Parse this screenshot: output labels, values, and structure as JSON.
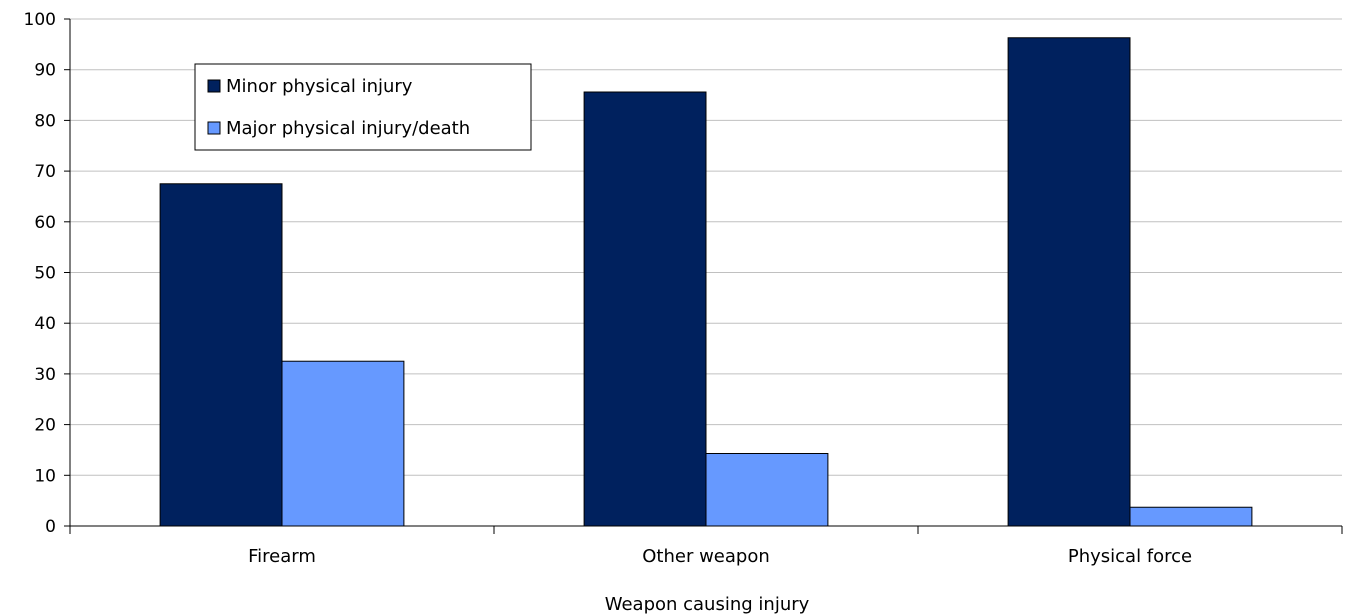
{
  "chart_data": {
    "type": "bar",
    "title": "",
    "xlabel": "Weapon causing injury",
    "ylabel": "",
    "categories": [
      "Firearm",
      "Other weapon",
      "Physical force"
    ],
    "series": [
      {
        "name": "Minor physical injury",
        "values": [
          67.5,
          85.6,
          96.3
        ],
        "color": "#00215E"
      },
      {
        "name": "Major physical injury/death",
        "values": [
          32.5,
          14.3,
          3.7
        ],
        "color": "#6699FF"
      }
    ],
    "ylim": [
      0,
      100
    ],
    "yticks": [
      "0",
      "10",
      "20",
      "30",
      "40",
      "50",
      "60",
      "70",
      "80",
      "90",
      "100"
    ],
    "grid": true,
    "legend_position": "top-left",
    "colors": {
      "grid": "#C0C0C0",
      "axis": "#000000",
      "bar_border": "#000000"
    }
  }
}
